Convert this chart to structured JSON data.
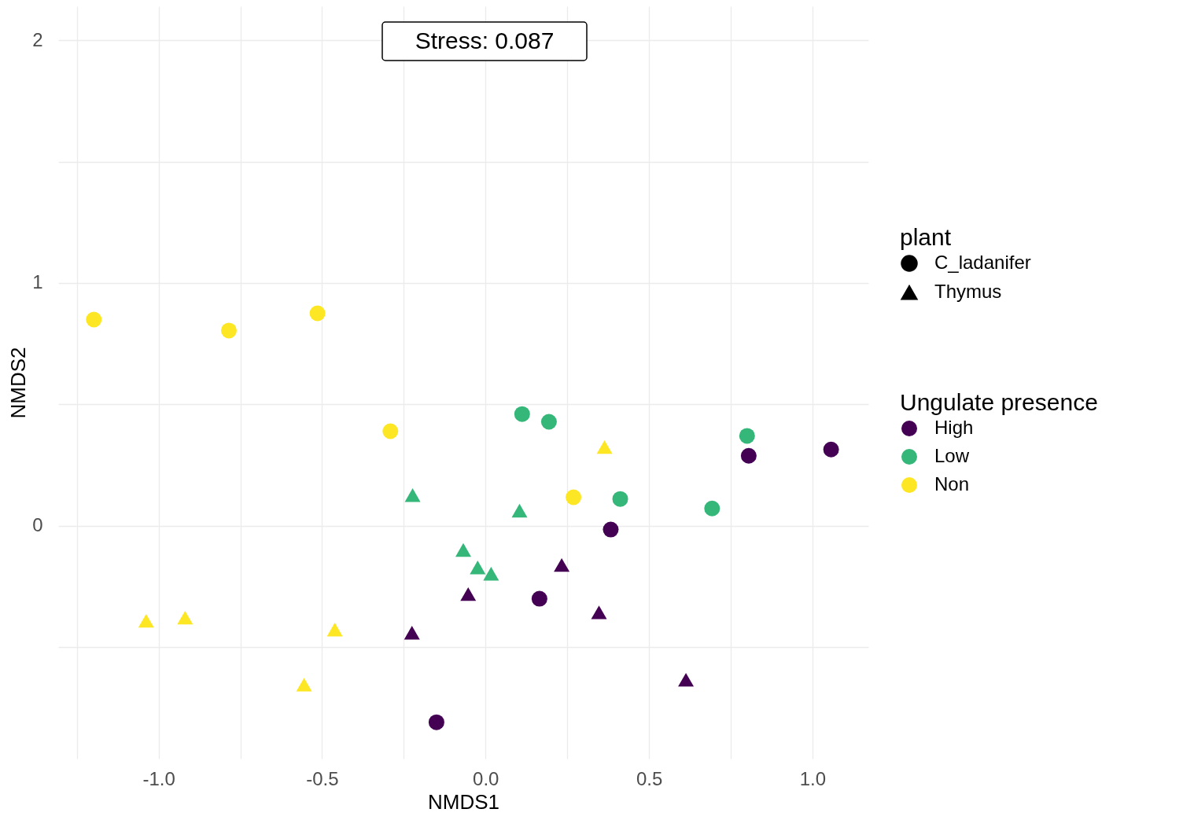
{
  "chart_data": {
    "type": "scatter",
    "xlabel": "NMDS1",
    "ylabel": "NMDS2",
    "legend_title": [
      "plant",
      "Ungulate presence"
    ],
    "legend": "right",
    "grid": true,
    "annotations": [
      "Stress:  0.087",
      "C_ladanifer",
      "Thymus"
    ],
    "xlim": [
      -1.307,
      1.171
    ],
    "ylim": [
      -0.96,
      2.14
    ],
    "xticks": [
      {
        "value": -1.25,
        "label": null
      },
      {
        "value": -1,
        "label": "-1.0"
      },
      {
        "value": -0.75,
        "label": null
      },
      {
        "value": -0.5,
        "label": "-0.5"
      },
      {
        "value": -0.25,
        "label": null
      },
      {
        "value": 0,
        "label": "0.0"
      },
      {
        "value": 0.25,
        "label": null
      },
      {
        "value": 0.5,
        "label": "0.5"
      },
      {
        "value": 0.75,
        "label": null
      },
      {
        "value": 1,
        "label": "1.0"
      }
    ],
    "yticks": [
      {
        "value": -0.5,
        "label": null
      },
      0,
      {
        "value": 0.5,
        "label": null
      },
      1,
      {
        "value": 1.5,
        "label": null
      },
      2
    ],
    "series": [
      {
        "name": "High",
        "marker": "circle",
        "color": "#440154",
        "x": [
          1.057,
          0.805,
          0.383,
          0.165,
          -0.15
        ],
        "values": [
          0.314,
          0.288,
          -0.016,
          -0.301,
          -0.81
        ]
      },
      {
        "name": "Low",
        "marker": "circle",
        "color": "#35b779",
        "x": [
          0.112,
          0.194,
          0.412,
          0.8,
          0.693
        ],
        "values": [
          0.46,
          0.428,
          0.11,
          0.37,
          0.071
        ]
      },
      {
        "name": "Non",
        "marker": "circle",
        "color": "#fde725",
        "x": [
          -1.198,
          -0.785,
          -0.514,
          -0.291,
          0.269
        ],
        "values": [
          0.849,
          0.804,
          0.875,
          0.389,
          0.117
        ]
      },
      {
        "marker": "triangle",
        "color": "#440154",
        "x": [
          0.233,
          -0.053,
          0.347,
          -0.225,
          0.613
        ],
        "values": [
          -0.162,
          -0.282,
          -0.357,
          -0.441,
          -0.635
        ]
      },
      {
        "marker": "triangle",
        "color": "#35b779",
        "x": [
          -0.223,
          0.104,
          -0.068,
          -0.024,
          0.017
        ],
        "values": [
          0.126,
          0.062,
          -0.1,
          -0.172,
          -0.198
        ]
      },
      {
        "marker": "triangle",
        "color": "#fde725",
        "x": [
          -1.038,
          -0.919,
          -0.461,
          -0.555,
          0.364
        ],
        "values": [
          -0.392,
          -0.379,
          -0.428,
          -0.655,
          0.324
        ]
      }
    ]
  }
}
